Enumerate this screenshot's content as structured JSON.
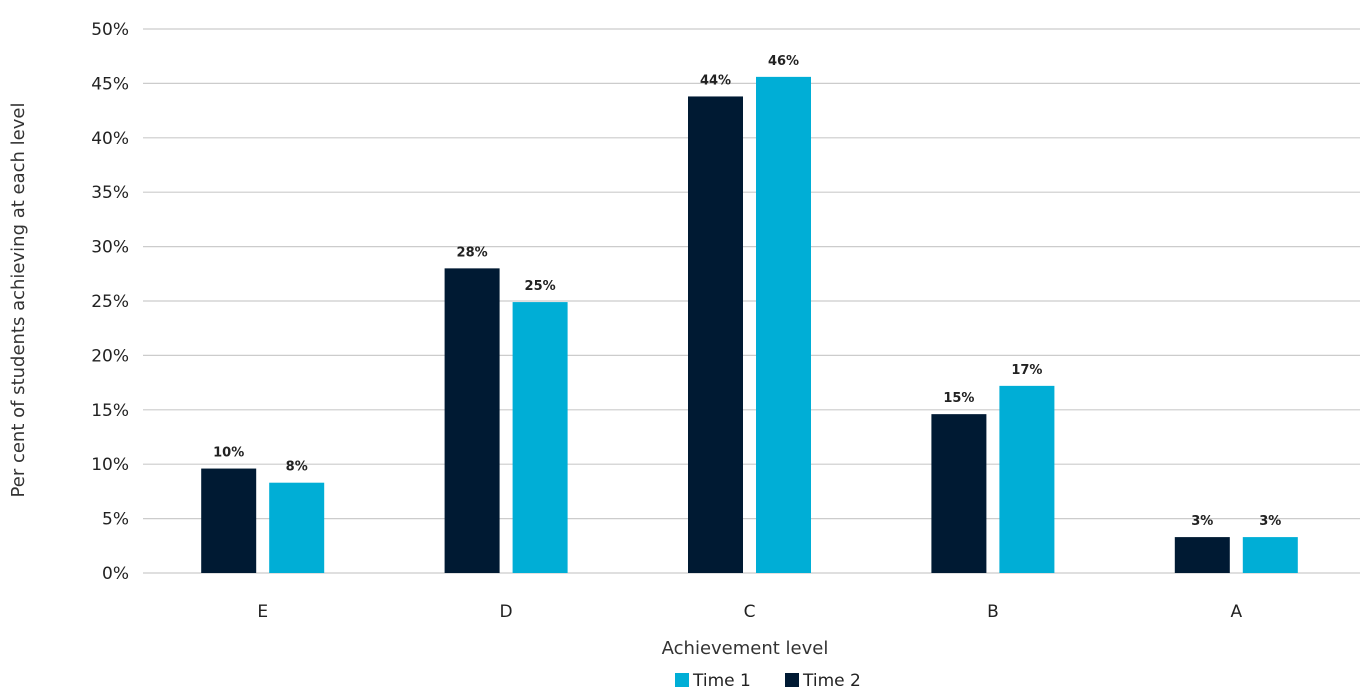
{
  "chart_data": {
    "type": "bar",
    "categories": [
      "E",
      "D",
      "C",
      "B",
      "A"
    ],
    "series": [
      {
        "name": "Time 2",
        "values": [
          9.6,
          28.0,
          43.8,
          14.6,
          3.3
        ],
        "labels": [
          "10%",
          "28%",
          "44%",
          "15%",
          "3%"
        ],
        "color": "#001a33"
      },
      {
        "name": "Time 1",
        "values": [
          8.3,
          24.9,
          45.6,
          17.2,
          3.3
        ],
        "labels": [
          "8%",
          "25%",
          "46%",
          "17%",
          "3%"
        ],
        "color": "#00aed6"
      }
    ],
    "xlabel": "Achievement level",
    "ylabel": "Per cent of students achieving at each level",
    "ylim": [
      0,
      50
    ],
    "yticks": [
      "0%",
      "5%",
      "10%",
      "15%",
      "20%",
      "25%",
      "30%",
      "35%",
      "40%",
      "45%",
      "50%"
    ],
    "grid": true,
    "legend": {
      "position": "bottom-center",
      "order": [
        {
          "name": "Time 1",
          "color": "#00aed6"
        },
        {
          "name": "Time 2",
          "color": "#001a33"
        }
      ]
    }
  }
}
